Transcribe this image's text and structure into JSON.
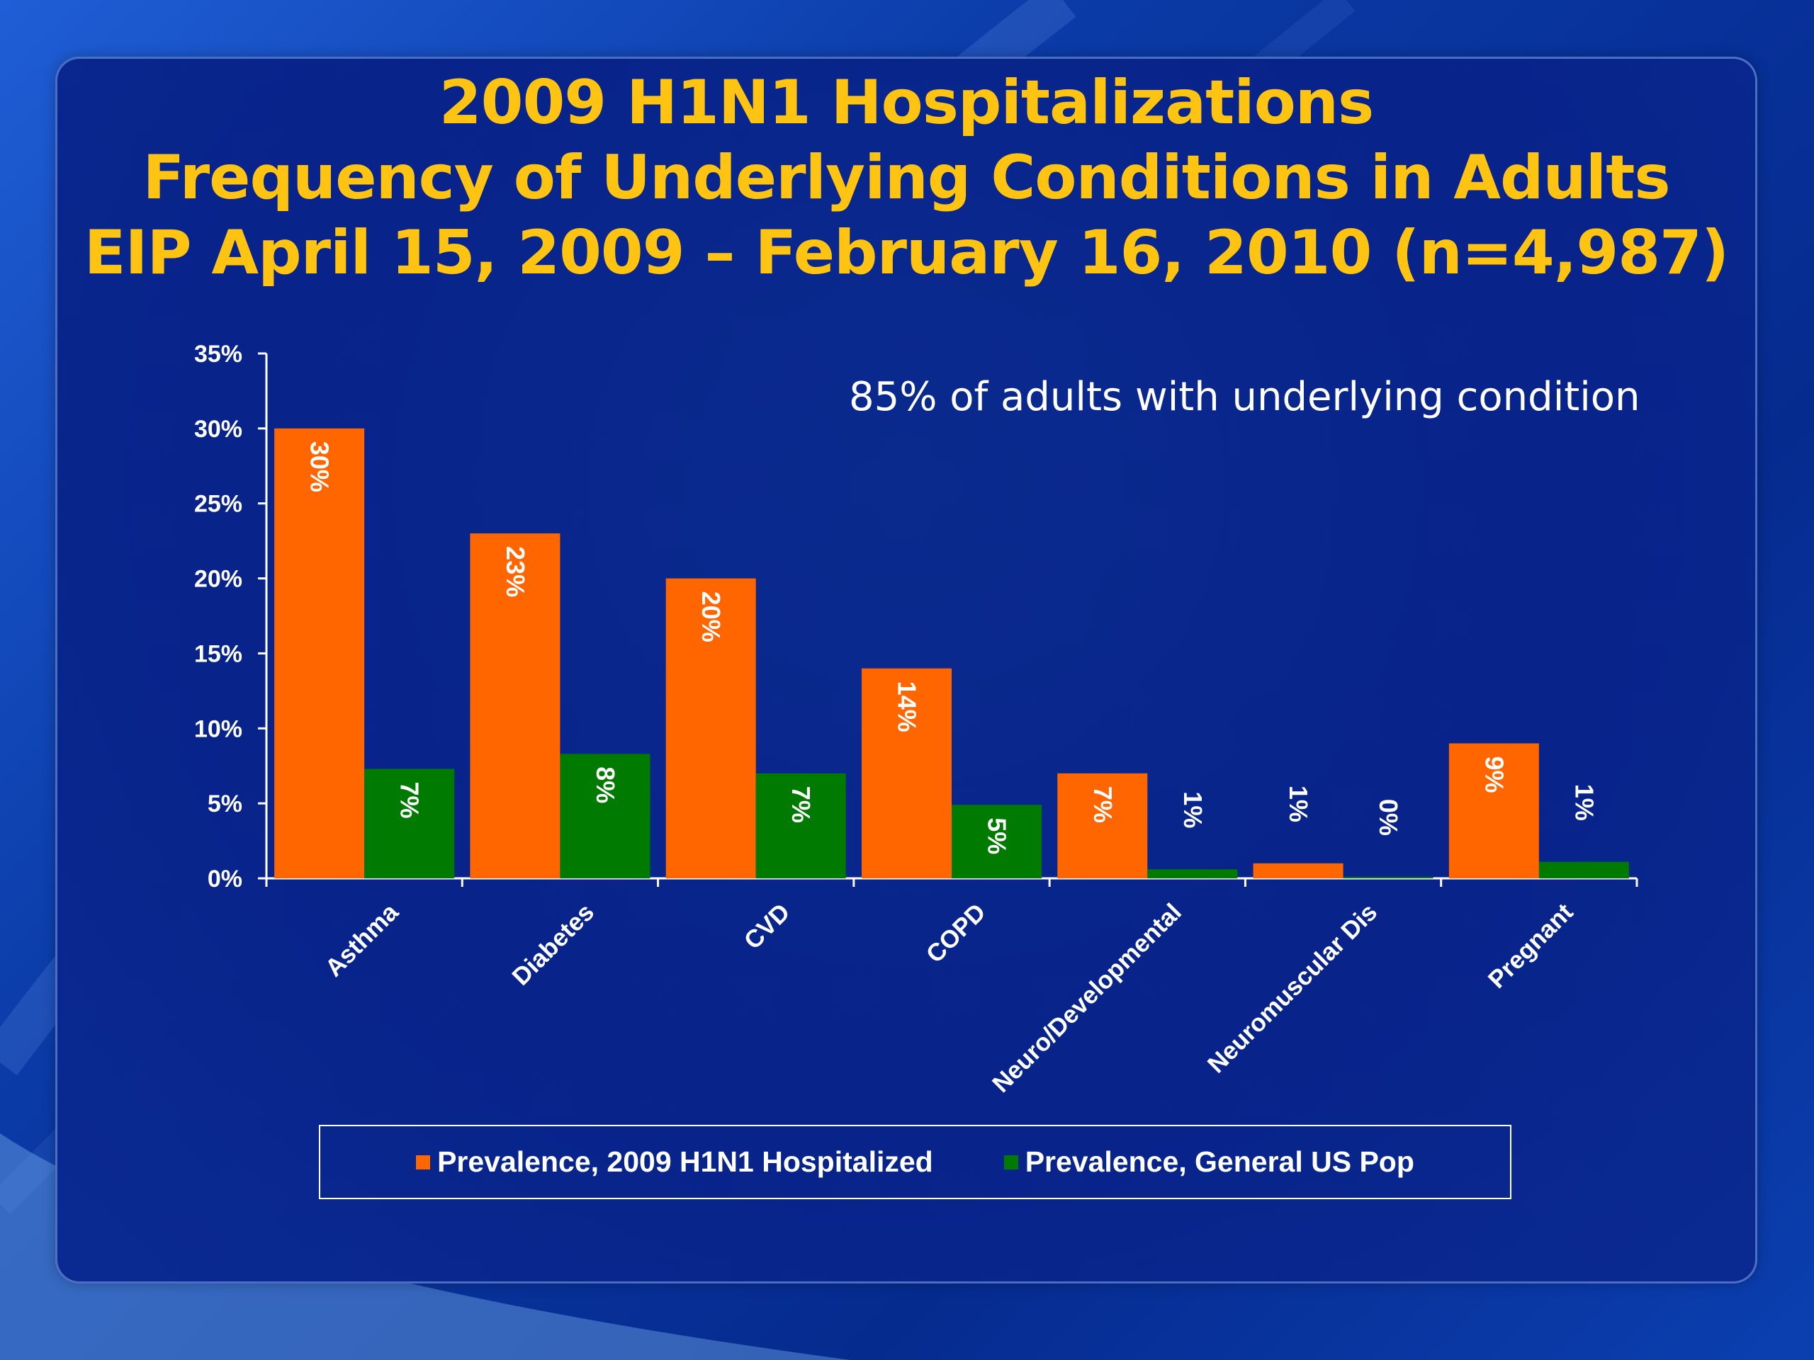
{
  "title_lines": [
    "2009 H1N1 Hospitalizations",
    "Frequency of Underlying Conditions in Adults",
    "EIP April 15, 2009 – February 16, 2010 (n=4,987)"
  ],
  "annotation": "85% of adults with underlying condition",
  "colors": {
    "hospitalized": "#ff6600",
    "general": "#007a00",
    "axis": "#ffffff",
    "title": "#ffc312"
  },
  "chart_data": {
    "type": "bar",
    "categories": [
      "Asthma",
      "Diabetes",
      "CVD",
      "COPD",
      "Neuro/Developmental",
      "Neuromuscular Dis",
      "Pregnant"
    ],
    "series": [
      {
        "name": "Prevalence, 2009 H1N1 Hospitalized",
        "values": [
          30,
          23,
          20,
          14,
          7,
          1,
          9
        ],
        "labels": [
          "30%",
          "23%",
          "20%",
          "14%",
          "7%",
          "1%",
          "9%"
        ]
      },
      {
        "name": "Prevalence, General US Pop",
        "values": [
          7.3,
          8.3,
          7.0,
          4.9,
          0.6,
          0.1,
          1.1
        ],
        "labels": [
          "7%",
          "8%",
          "7%",
          "5%",
          "1%",
          "0%",
          "1%"
        ]
      }
    ],
    "ylim": [
      0,
      35
    ],
    "yticks": [
      "0%",
      "5%",
      "10%",
      "15%",
      "20%",
      "25%",
      "30%",
      "35%"
    ],
    "legend_position": "bottom"
  }
}
